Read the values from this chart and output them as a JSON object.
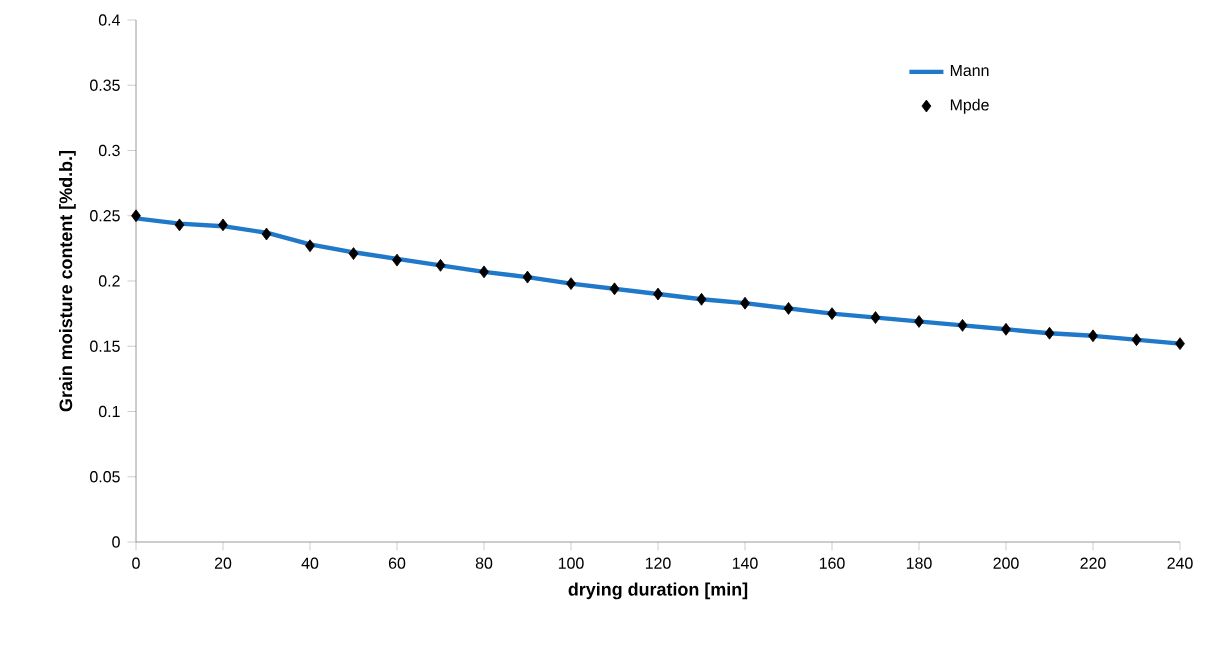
{
  "chart_data": {
    "type": "line",
    "xlabel": "drying duration [min]",
    "ylabel": "Grain moisture content [%d.b.]",
    "x": [
      0,
      10,
      20,
      30,
      40,
      50,
      60,
      70,
      80,
      90,
      100,
      110,
      120,
      130,
      140,
      150,
      160,
      170,
      180,
      190,
      200,
      210,
      220,
      230,
      240
    ],
    "series": [
      {
        "name": "Mann",
        "color": "#1f78c8",
        "marker": "none",
        "line_style": "solid",
        "values": [
          0.248,
          0.244,
          0.242,
          0.237,
          0.228,
          0.222,
          0.217,
          0.212,
          0.207,
          0.203,
          0.198,
          0.194,
          0.19,
          0.186,
          0.183,
          0.179,
          0.175,
          0.172,
          0.169,
          0.166,
          0.163,
          0.16,
          0.158,
          0.155,
          0.152
        ]
      },
      {
        "name": "Mpde",
        "type": "scatter",
        "color": "#000000",
        "marker": "diamond",
        "values": [
          0.25,
          0.243,
          0.243,
          0.236,
          0.227,
          0.221,
          0.216,
          0.212,
          0.207,
          0.203,
          0.198,
          0.194,
          0.19,
          0.186,
          0.183,
          0.179,
          0.175,
          0.172,
          0.169,
          0.166,
          0.163,
          0.16,
          0.158,
          0.155,
          0.152
        ]
      }
    ],
    "xlim": [
      0,
      240
    ],
    "xticks": [
      0,
      20,
      40,
      60,
      80,
      100,
      120,
      140,
      160,
      180,
      200,
      220,
      240
    ],
    "ylim": [
      0,
      0.4
    ],
    "yticks": [
      0,
      0.05,
      0.1,
      0.15,
      0.2,
      0.25,
      0.3,
      0.35,
      0.4
    ],
    "grid": false,
    "legend": "top right"
  }
}
